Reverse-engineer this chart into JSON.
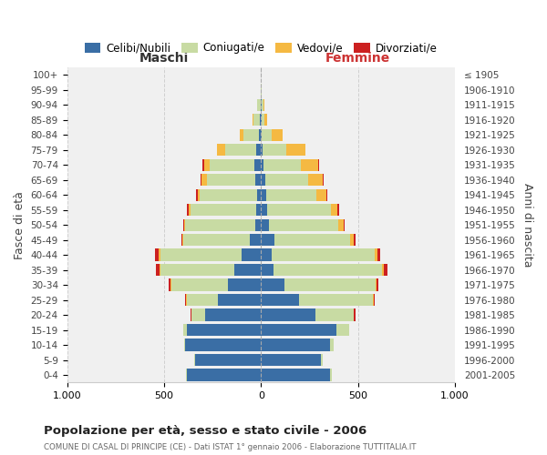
{
  "age_groups": [
    "0-4",
    "5-9",
    "10-14",
    "15-19",
    "20-24",
    "25-29",
    "30-34",
    "35-39",
    "40-44",
    "45-49",
    "50-54",
    "55-59",
    "60-64",
    "65-69",
    "70-74",
    "75-79",
    "80-84",
    "85-89",
    "90-94",
    "95-99",
    "100+"
  ],
  "birth_years": [
    "2001-2005",
    "1996-2000",
    "1991-1995",
    "1986-1990",
    "1981-1985",
    "1976-1980",
    "1971-1975",
    "1966-1970",
    "1961-1965",
    "1956-1960",
    "1951-1955",
    "1946-1950",
    "1941-1945",
    "1936-1940",
    "1931-1935",
    "1926-1930",
    "1921-1925",
    "1916-1920",
    "1911-1915",
    "1906-1910",
    "≤ 1905"
  ],
  "males": {
    "celibi": [
      380,
      340,
      390,
      380,
      290,
      220,
      170,
      140,
      100,
      60,
      30,
      25,
      20,
      30,
      35,
      25,
      10,
      5,
      3,
      0,
      0
    ],
    "coniugati": [
      5,
      5,
      5,
      20,
      70,
      160,
      290,
      380,
      420,
      340,
      360,
      340,
      295,
      250,
      230,
      160,
      80,
      35,
      15,
      2,
      0
    ],
    "vedovi": [
      0,
      0,
      0,
      0,
      0,
      5,
      5,
      5,
      10,
      5,
      5,
      10,
      10,
      25,
      30,
      40,
      20,
      5,
      3,
      0,
      0
    ],
    "divorziati": [
      0,
      0,
      0,
      0,
      5,
      5,
      10,
      15,
      15,
      5,
      5,
      8,
      10,
      8,
      5,
      0,
      0,
      0,
      0,
      0,
      0
    ]
  },
  "females": {
    "nubili": [
      355,
      310,
      355,
      390,
      280,
      195,
      120,
      65,
      55,
      70,
      40,
      30,
      25,
      20,
      15,
      10,
      5,
      3,
      2,
      0,
      0
    ],
    "coniugate": [
      10,
      10,
      20,
      65,
      200,
      380,
      470,
      560,
      530,
      390,
      360,
      330,
      260,
      225,
      190,
      120,
      50,
      15,
      10,
      2,
      0
    ],
    "vedove": [
      0,
      0,
      0,
      0,
      0,
      5,
      5,
      10,
      15,
      20,
      25,
      35,
      50,
      75,
      90,
      100,
      55,
      15,
      5,
      0,
      0
    ],
    "divorziate": [
      0,
      0,
      0,
      0,
      5,
      5,
      10,
      15,
      15,
      8,
      8,
      10,
      8,
      5,
      5,
      0,
      0,
      0,
      0,
      0,
      0
    ]
  },
  "colors": {
    "celibi": "#3a6ea5",
    "coniugati": "#c8dba3",
    "vedovi": "#f5b942",
    "divorziati": "#cc2020"
  },
  "legend_labels": [
    "Celibi/Nubili",
    "Coniugati/e",
    "Vedovi/e",
    "Divorziati/e"
  ],
  "title": "Popolazione per età, sesso e stato civile - 2006",
  "subtitle": "COMUNE DI CASAL DI PRINCIPE (CE) - Dati ISTAT 1° gennaio 2006 - Elaborazione TUTTITALIA.IT",
  "label_maschi": "Maschi",
  "label_femmine": "Femmine",
  "ylabel_left": "Fasce di età",
  "ylabel_right": "Anni di nascita",
  "xlim": 1000,
  "bg_color": "#ffffff",
  "plot_bg": "#f0f0f0",
  "grid_color": "#cccccc"
}
